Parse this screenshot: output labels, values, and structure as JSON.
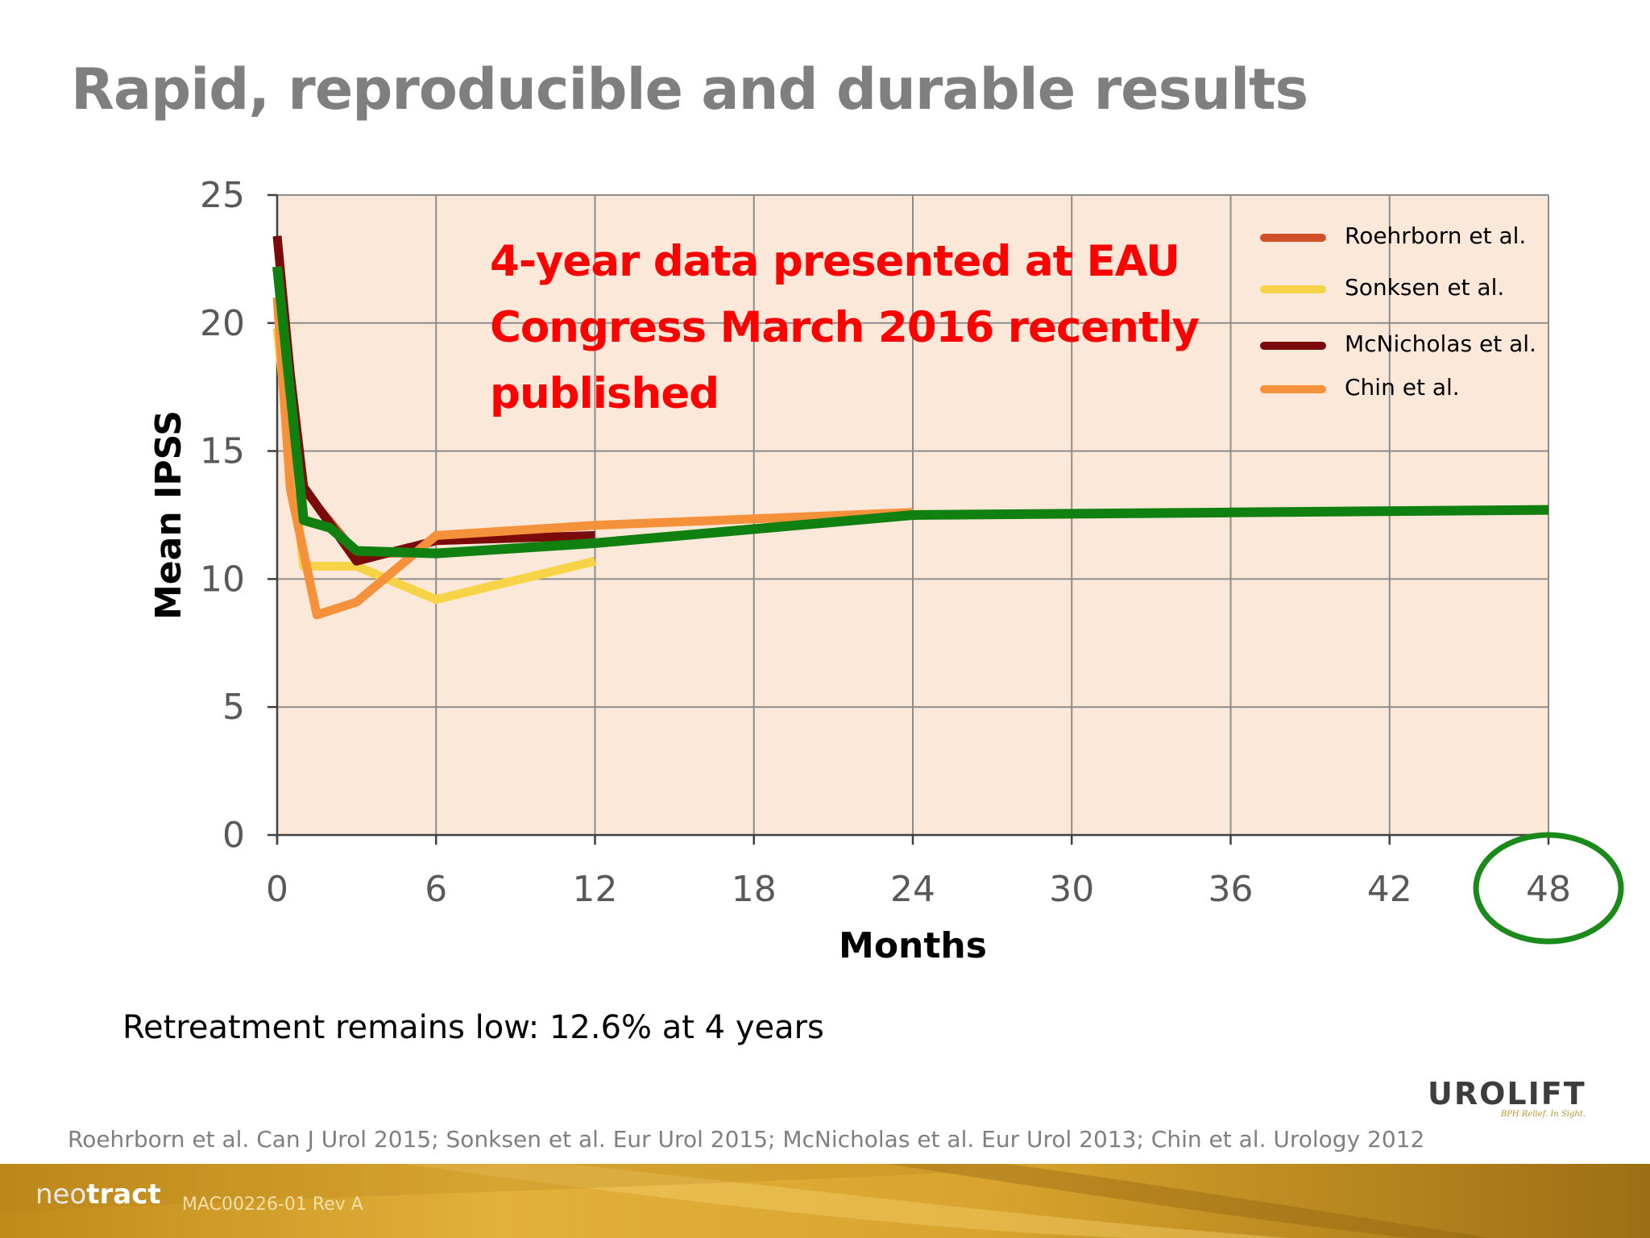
{
  "slide": {
    "title": "Rapid, reproducible and durable results",
    "callout_lines": [
      "4-year data presented at EAU",
      "Congress March 2016 recently",
      "published"
    ],
    "footnote": "Retreatment remains low: 12.6% at 4 years",
    "references": "Roehrborn et al. Can J Urol 2015; Sonksen et al. Eur Urol 2015; McNicholas et al. Eur Urol 2013; Chin et al. Urology 2012",
    "logo": {
      "word": "UROLIFT",
      "tagline": "BPH Relief. In Sight."
    },
    "footer": {
      "brand_light": "neo",
      "brand_bold": "tract",
      "doc_code": "MAC00226-01 Rev A"
    }
  },
  "chart_data": {
    "type": "line",
    "xlabel": "Months",
    "ylabel": "Mean IPSS",
    "xlim": [
      0,
      48
    ],
    "ylim": [
      0,
      25
    ],
    "x_ticks": [
      0,
      6,
      12,
      18,
      24,
      30,
      36,
      42,
      48
    ],
    "y_ticks": [
      0,
      5,
      10,
      15,
      20,
      25
    ],
    "grid": true,
    "legend_position": "top-right",
    "highlighted_tick": 48,
    "colors": {
      "plot_background": "#fbe8d8",
      "grid": "#8c8c8c",
      "highlight_ring": "#1a8a1a"
    },
    "series": [
      {
        "name": "Roehrborn et al.",
        "color": "#d0502a",
        "x": [
          0,
          0.5,
          1,
          3,
          6,
          12,
          24,
          36,
          48
        ],
        "y": [
          22.1,
          18.0,
          13.5,
          11.0,
          11.0,
          11.4,
          12.5,
          12.6,
          12.7
        ]
      },
      {
        "name": "Sonksen et al.",
        "color": "#f7d447",
        "x": [
          0,
          0.5,
          1,
          3,
          6,
          12
        ],
        "y": [
          19.8,
          15.0,
          10.5,
          10.5,
          9.2,
          10.7
        ]
      },
      {
        "name": "McNicholas et al.",
        "color": "#7b0a0a",
        "x": [
          0,
          0.5,
          1,
          3,
          6,
          12
        ],
        "y": [
          23.4,
          18.0,
          13.6,
          10.7,
          11.5,
          11.7
        ]
      },
      {
        "name": "Chin et al.",
        "color": "#f5913a",
        "x": [
          0,
          0.5,
          1.5,
          3,
          6,
          12,
          24
        ],
        "y": [
          21.0,
          13.5,
          8.6,
          9.1,
          11.7,
          12.1,
          12.6
        ]
      },
      {
        "name": "",
        "color": "#108010",
        "x": [
          0,
          1,
          2,
          3,
          6,
          12,
          24,
          36,
          48
        ],
        "y": [
          22.2,
          12.3,
          12.0,
          11.1,
          11.0,
          11.4,
          12.5,
          12.6,
          12.7
        ]
      }
    ]
  }
}
